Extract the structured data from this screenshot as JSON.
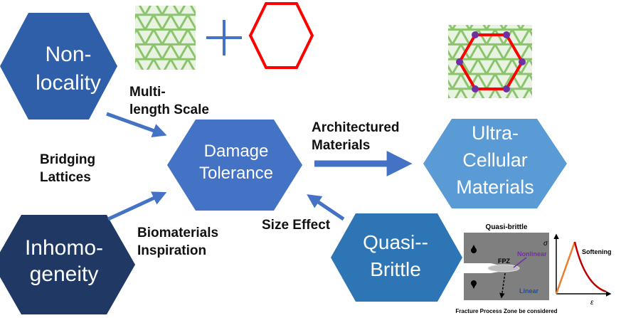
{
  "nodes": {
    "non_locality": {
      "line1": "Non-",
      "line2": "locality"
    },
    "damage_tolerance": {
      "line1": "Damage",
      "line2": "Tolerance"
    },
    "ultra_cellular": {
      "line1": "Ultra-",
      "line2": "Cellular",
      "line3": "Materials"
    },
    "inhomogeneity": {
      "line1": "Inhomo-",
      "line2": "geneity"
    },
    "quasi_brittle": {
      "line1": "Quasi--",
      "line2": "Brittle"
    }
  },
  "edge_labels": {
    "multi_length": {
      "line1": "Multi-",
      "line2": "length Scale"
    },
    "bridging": {
      "line1": "Bridging",
      "line2": "Lattices"
    },
    "architectured": {
      "line1": "Architectured",
      "line2": "Materials"
    },
    "biomaterials": {
      "line1": "Biomaterials",
      "line2": "Inspiration"
    },
    "size_effect": "Size Effect"
  },
  "inset_fpz": {
    "title": "Quasi-brittle",
    "fpz_label": "FPZ",
    "nonlinear_label": "Nonlinear",
    "linear_label": "Linear",
    "caption": "Fracture Process Zone be considered"
  },
  "inset_curve": {
    "y_axis_symbol": "σ",
    "x_axis_symbol": "ε",
    "softening_label": "Softening"
  },
  "colors": {
    "hex_dark": "#1f3864",
    "hex_mid": "#2e5fa8",
    "hex_main": "#4472c4",
    "hex_light": "#5b9bd5",
    "arrow": "#4472c4",
    "lattice": "#92c47a",
    "hexagon_outline": "#ff0000",
    "node_dot": "#7030a0"
  }
}
